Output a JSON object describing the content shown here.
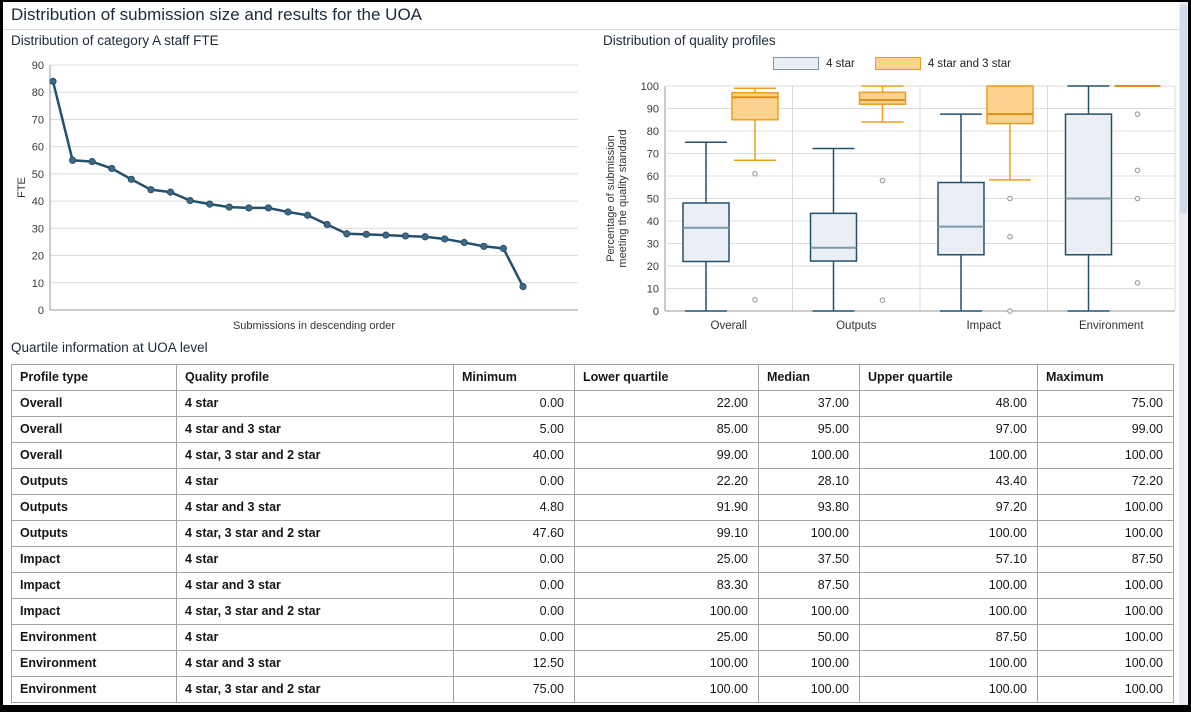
{
  "page": {
    "title": "Distribution of submission size and results for the UOA"
  },
  "colors": {
    "line": "#24506b",
    "marker_fill": "#3e6a85",
    "star4_fill": "#e9eff4",
    "star4_stroke": "#24506b",
    "star4_median": "#7d99aa",
    "star43_fill": "#fbd38f",
    "star43_stroke": "#f09d23",
    "star43_median": "#e18f1e",
    "grid": "#dcdcdc",
    "axis": "#9a9a9a",
    "outlier": "#999999"
  },
  "chart_data": [
    {
      "type": "line",
      "title": "Distribution of category A staff FTE",
      "xlabel": "Submissions in descending order",
      "ylabel": "FTE",
      "ylim": [
        0,
        90
      ],
      "ytick_step": 10,
      "grid": "horizontal",
      "values": [
        84,
        55,
        54.5,
        52,
        48,
        44.2,
        43.3,
        40.2,
        38.9,
        37.8,
        37.5,
        37.5,
        36,
        34.8,
        31.4,
        28,
        27.8,
        27.5,
        27.2,
        26.9,
        26.1,
        24.8,
        23.4,
        22.6,
        8.6
      ]
    },
    {
      "type": "boxplot",
      "title": "Distribution of quality profiles",
      "ylabel": "Percentage of submission meeting the quality standard",
      "ylabel_lines": [
        "Percentage of submission",
        "meeting the quality standard"
      ],
      "ylim": [
        0,
        100
      ],
      "ytick_step": 10,
      "legend": [
        "4 star",
        "4 star and 3 star"
      ],
      "legend_position": "top-center",
      "categories": [
        "Overall",
        "Outputs",
        "Impact",
        "Environment"
      ],
      "series": [
        {
          "name": "4 star",
          "boxes": [
            {
              "low": 0,
              "q1": 22,
              "med": 37,
              "q3": 48,
              "high": 75,
              "outliers": []
            },
            {
              "low": 0,
              "q1": 22.2,
              "med": 28.1,
              "q3": 43.4,
              "high": 72.2,
              "outliers": []
            },
            {
              "low": 0,
              "q1": 25,
              "med": 37.5,
              "q3": 57.1,
              "high": 87.5,
              "outliers": []
            },
            {
              "low": 0,
              "q1": 25,
              "med": 50,
              "q3": 87.5,
              "high": 100,
              "outliers": []
            }
          ]
        },
        {
          "name": "4 star and 3 star",
          "boxes": [
            {
              "low": 67,
              "q1": 85,
              "med": 95,
              "q3": 97,
              "high": 99,
              "outliers": [
                61,
                5
              ]
            },
            {
              "low": 84,
              "q1": 91.9,
              "med": 93.8,
              "q3": 97.2,
              "high": 100,
              "outliers": [
                58,
                4.8
              ]
            },
            {
              "low": 58.3,
              "q1": 83.3,
              "med": 87.5,
              "q3": 100,
              "high": 100,
              "outliers": [
                50,
                33,
                0
              ]
            },
            {
              "low": 100,
              "q1": 100,
              "med": 100,
              "q3": 100,
              "high": 100,
              "outliers": [
                87.5,
                62.5,
                50,
                12.5
              ]
            }
          ]
        }
      ]
    },
    {
      "type": "table",
      "title": "Quartile information at UOA level",
      "columns": [
        "Profile type",
        "Quality profile",
        "Minimum",
        "Lower quartile",
        "Median",
        "Upper quartile",
        "Maximum"
      ],
      "rows": [
        [
          "Overall",
          "4 star",
          "0.00",
          "22.00",
          "37.00",
          "48.00",
          "75.00"
        ],
        [
          "Overall",
          "4 star and 3 star",
          "5.00",
          "85.00",
          "95.00",
          "97.00",
          "99.00"
        ],
        [
          "Overall",
          "4 star, 3 star and 2 star",
          "40.00",
          "99.00",
          "100.00",
          "100.00",
          "100.00"
        ],
        [
          "Outputs",
          "4 star",
          "0.00",
          "22.20",
          "28.10",
          "43.40",
          "72.20"
        ],
        [
          "Outputs",
          "4 star and 3 star",
          "4.80",
          "91.90",
          "93.80",
          "97.20",
          "100.00"
        ],
        [
          "Outputs",
          "4 star, 3 star and 2 star",
          "47.60",
          "99.10",
          "100.00",
          "100.00",
          "100.00"
        ],
        [
          "Impact",
          "4 star",
          "0.00",
          "25.00",
          "37.50",
          "57.10",
          "87.50"
        ],
        [
          "Impact",
          "4 star and 3 star",
          "0.00",
          "83.30",
          "87.50",
          "100.00",
          "100.00"
        ],
        [
          "Impact",
          "4 star, 3 star and 2 star",
          "0.00",
          "100.00",
          "100.00",
          "100.00",
          "100.00"
        ],
        [
          "Environment",
          "4 star",
          "0.00",
          "25.00",
          "50.00",
          "87.50",
          "100.00"
        ],
        [
          "Environment",
          "4 star and 3 star",
          "12.50",
          "100.00",
          "100.00",
          "100.00",
          "100.00"
        ],
        [
          "Environment",
          "4 star, 3 star and 2 star",
          "75.00",
          "100.00",
          "100.00",
          "100.00",
          "100.00"
        ]
      ]
    }
  ]
}
